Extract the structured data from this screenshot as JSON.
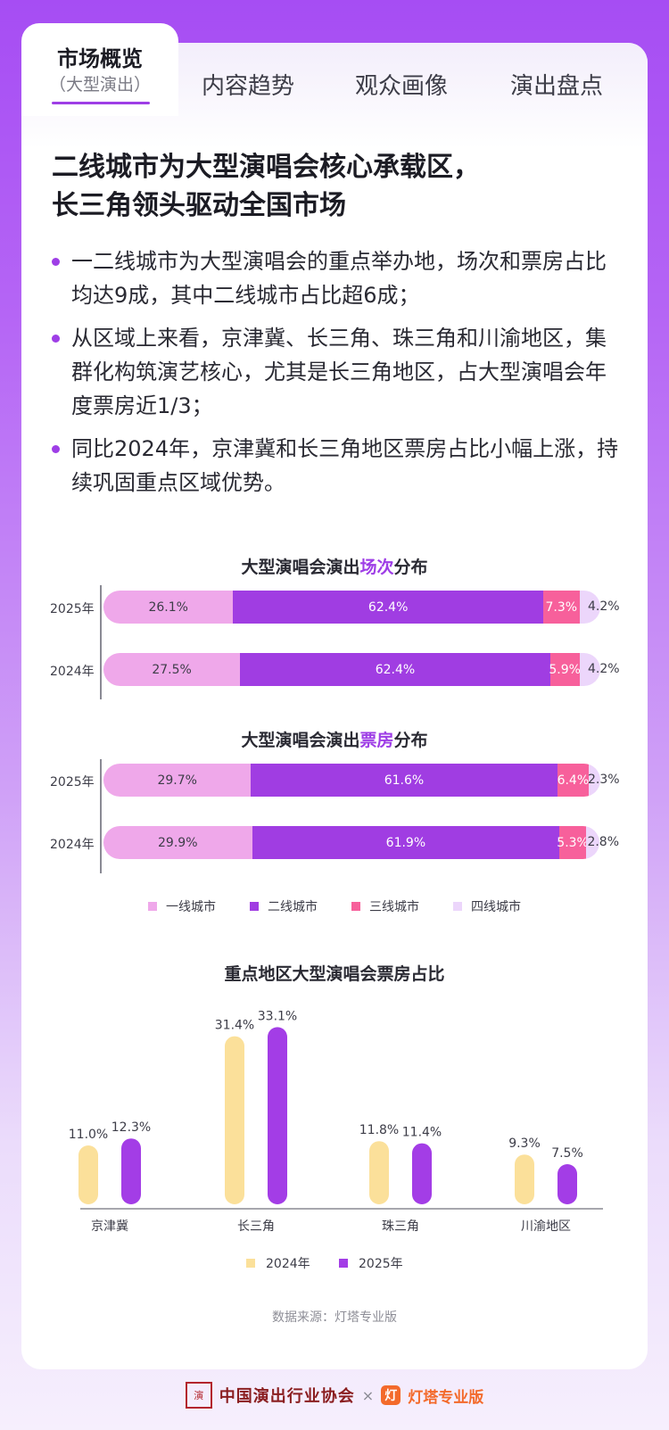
{
  "tabs": [
    {
      "label": "市场概览",
      "sub": "（大型演出）",
      "active": true
    },
    {
      "label": "内容趋势"
    },
    {
      "label": "观众画像"
    },
    {
      "label": "演出盘点"
    }
  ],
  "headline": [
    "二线城市为大型演唱会核心承载区，",
    "长三角领头驱动全国市场"
  ],
  "bullets": [
    "一二线城市为大型演唱会的重点举办地，场次和票房占比均达9成，其中二线城市占比超6成；",
    "从区域上来看，京津冀、长三角、珠三角和川渝地区，集群化构筑演艺核心，尤其是长三角地区，占大型演唱会年度票房近1/3；",
    "同比2024年，京津冀和长三角地区票房占比小幅上涨，持续巩固重点区域优势。"
  ],
  "colors": {
    "tier1": "#efa8ea",
    "tier2": "#a03de2",
    "tier3": "#f7609b",
    "tier4": "#ecd6fb",
    "y2024": "#fbe09a",
    "y2025": "#a33de6",
    "accent": "#9e3ee6"
  },
  "chart_data": [
    {
      "type": "bar",
      "orientation": "horizontal-stacked",
      "title_pre": "大型演唱会演出",
      "title_hl": "场次",
      "title_post": "分布",
      "categories": [
        "2025年",
        "2024年"
      ],
      "series": [
        {
          "name": "一线城市",
          "values": [
            26.1,
            27.5
          ]
        },
        {
          "name": "二线城市",
          "values": [
            62.4,
            62.4
          ]
        },
        {
          "name": "三线城市",
          "values": [
            7.3,
            5.9
          ]
        },
        {
          "name": "四线城市",
          "values": [
            4.2,
            4.2
          ]
        }
      ]
    },
    {
      "type": "bar",
      "orientation": "horizontal-stacked",
      "title_pre": "大型演唱会演出",
      "title_hl": "票房",
      "title_post": "分布",
      "categories": [
        "2025年",
        "2024年"
      ],
      "series": [
        {
          "name": "一线城市",
          "values": [
            29.7,
            29.9
          ]
        },
        {
          "name": "二线城市",
          "values": [
            61.6,
            61.9
          ]
        },
        {
          "name": "三线城市",
          "values": [
            6.4,
            5.3
          ]
        },
        {
          "name": "四线城市",
          "values": [
            2.3,
            2.8
          ]
        }
      ]
    },
    {
      "type": "bar",
      "title": "重点地区大型演唱会票房占比",
      "categories": [
        "京津冀",
        "长三角",
        "珠三角",
        "川渝地区"
      ],
      "series": [
        {
          "name": "2024年",
          "values": [
            11.0,
            31.4,
            11.8,
            9.3
          ]
        },
        {
          "name": "2025年",
          "values": [
            12.3,
            33.1,
            11.4,
            7.5
          ]
        }
      ],
      "unit": "%"
    }
  ],
  "legend_tiers": [
    "一线城市",
    "二线城市",
    "三线城市",
    "四线城市"
  ],
  "source": "数据来源：灯塔专业版",
  "footer": {
    "seal": "演",
    "org": "中国演出行业协会",
    "times": "×",
    "partner_logo": "灯",
    "partner": "灯塔专业版"
  }
}
